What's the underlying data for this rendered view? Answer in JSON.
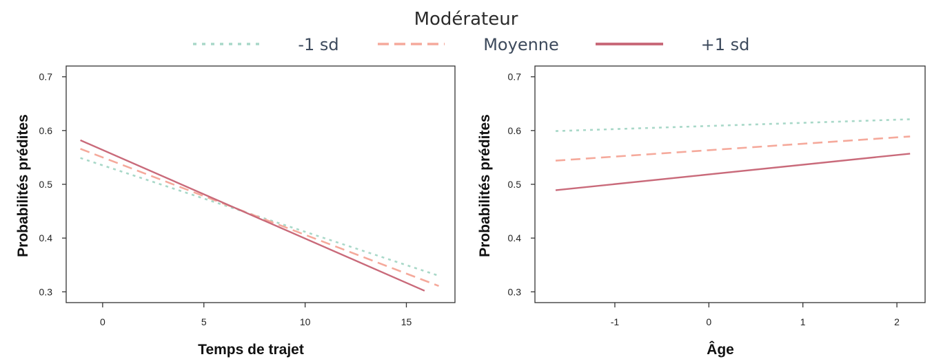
{
  "legend": {
    "title": "Modérateur",
    "entries": [
      {
        "label": "-1 sd",
        "color": "#a8d8c8",
        "dash": "dotted"
      },
      {
        "label": "Moyenne",
        "color": "#f5a99b",
        "dash": "dashed"
      },
      {
        "label": "+1 sd",
        "color": "#c96a7a",
        "dash": "solid"
      }
    ]
  },
  "chart_data": [
    {
      "type": "line",
      "xlabel": "Temps de trajet",
      "ylabel": "Probabilités prédites",
      "xlim": [
        -1.8,
        17.4
      ],
      "ylim": [
        0.28,
        0.72
      ],
      "xticks": [
        0,
        5,
        10,
        15
      ],
      "yticks": [
        0.3,
        0.4,
        0.5,
        0.6,
        0.7
      ],
      "xtick_labels": [
        "0",
        "5",
        "10",
        "15"
      ],
      "ytick_labels": [
        "0.3",
        "0.4",
        "0.5",
        "0.6",
        "0.7"
      ],
      "series": [
        {
          "name": "-1 sd",
          "x": [
            -1.1,
            16.6
          ],
          "y": [
            0.549,
            0.33
          ]
        },
        {
          "name": "Moyenne",
          "x": [
            -1.1,
            16.6
          ],
          "y": [
            0.566,
            0.311
          ]
        },
        {
          "name": "+1 sd",
          "x": [
            -1.1,
            15.9
          ],
          "y": [
            0.582,
            0.302
          ]
        }
      ]
    },
    {
      "type": "line",
      "xlabel": "Âge",
      "ylabel": "Probabilités prédites",
      "xlim": [
        -1.85,
        2.3
      ],
      "ylim": [
        0.28,
        0.72
      ],
      "xticks": [
        -1,
        0,
        1,
        2
      ],
      "yticks": [
        0.3,
        0.4,
        0.5,
        0.6,
        0.7
      ],
      "xtick_labels": [
        "-1",
        "0",
        "1",
        "2"
      ],
      "ytick_labels": [
        "0.3",
        "0.4",
        "0.5",
        "0.6",
        "0.7"
      ],
      "series": [
        {
          "name": "-1 sd",
          "x": [
            -1.63,
            2.14
          ],
          "y": [
            0.599,
            0.621
          ]
        },
        {
          "name": "Moyenne",
          "x": [
            -1.63,
            2.14
          ],
          "y": [
            0.544,
            0.589
          ]
        },
        {
          "name": "+1 sd",
          "x": [
            -1.63,
            2.14
          ],
          "y": [
            0.489,
            0.557
          ]
        }
      ]
    }
  ]
}
